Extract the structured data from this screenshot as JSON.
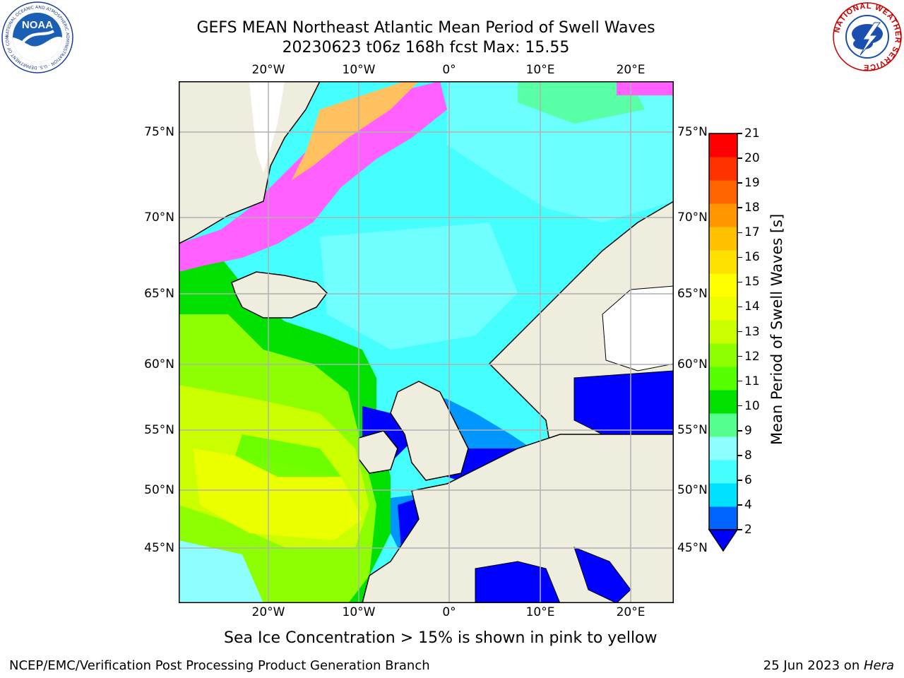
{
  "title": {
    "line1": "GEFS MEAN Northeast Atlantic Mean Period of Swell Waves",
    "line2": "20230623 t06z 168h fcst   Max: 15.55"
  },
  "logos": {
    "noaa": {
      "text": "NOAA",
      "ring_text": "NATIONAL OCEANIC AND ATMOSPHERIC ADMINISTRATION · U.S. DEPARTMENT OF COMMERCE",
      "icon": "noaa-logo"
    },
    "nws": {
      "ring_text": "NATIONAL WEATHER SERVICE",
      "icon": "nws-logo"
    }
  },
  "map": {
    "lon_ticks_top": [
      "20°W",
      "10°W",
      "0°",
      "10°E",
      "20°E"
    ],
    "lon_ticks_bottom": [
      "20°W",
      "10°W",
      "0°",
      "10°E",
      "20°E"
    ],
    "lat_ticks_left": [
      "75°N",
      "70°N",
      "65°N",
      "60°N",
      "55°N",
      "50°N",
      "45°N"
    ],
    "lat_ticks_right": [
      "75°N",
      "70°N",
      "65°N",
      "60°N",
      "55°N",
      "50°N",
      "45°N"
    ],
    "land_color": "#efedde",
    "ocean_colors": {
      "blue": "#0000ff",
      "light_blue": "#0096ff",
      "cyan": "#00e1ff",
      "cyan_light": "#45ffff",
      "aqua": "#8dffff",
      "mint": "#55ff8d",
      "green": "#00e100",
      "lime": "#8dff00",
      "yellow_green": "#caff00",
      "yellow": "#eaff00",
      "ice_pink": "#ff60ff",
      "ice_orange": "#ffc060"
    }
  },
  "colorbar": {
    "label": "Mean Period of Swell Waves [s]",
    "ticks": [
      "21",
      "20",
      "19",
      "18",
      "17",
      "16",
      "15",
      "14",
      "13",
      "12",
      "11",
      "10",
      "9",
      "8",
      "6",
      "4",
      "2"
    ],
    "colors_bottom_to_top": [
      "#0064ff",
      "#00e1ff",
      "#45ffff",
      "#8dffff",
      "#55ff8d",
      "#00e100",
      "#55ff00",
      "#8dff00",
      "#caff00",
      "#eaff00",
      "#ffff00",
      "#ffe100",
      "#ffc000",
      "#ff9600",
      "#ff6400",
      "#ff3200",
      "#ff0000"
    ],
    "extend_color": "#0000ff"
  },
  "caption": "Sea Ice Concentration > 15% is shown in pink to yellow",
  "footer": {
    "left": "NCEP/EMC/Verification Post Processing Product Generation Branch",
    "right_date": "25 Jun 2023 on ",
    "right_machine": "Hera"
  }
}
